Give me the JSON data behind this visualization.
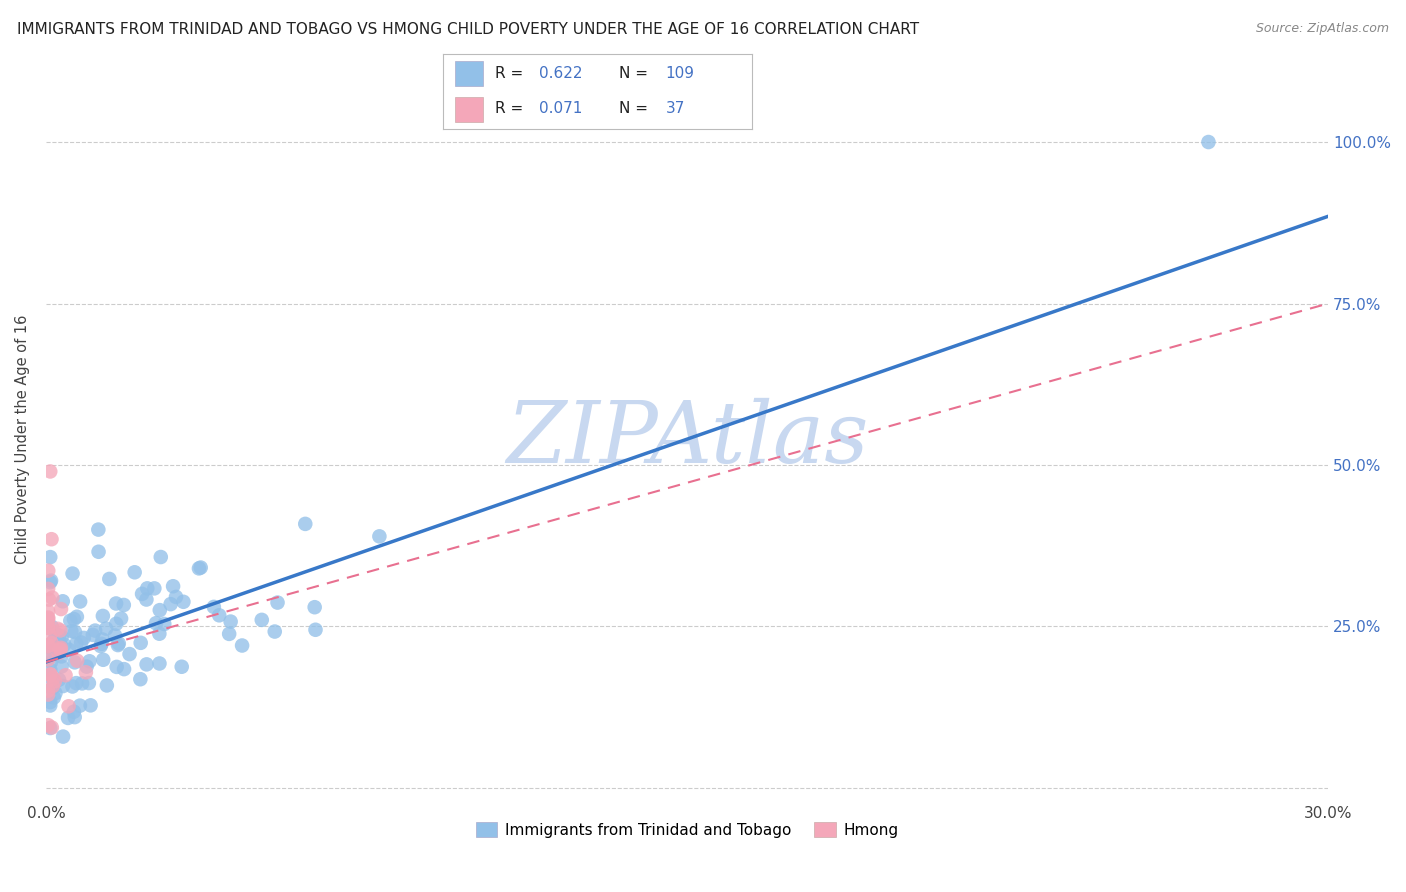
{
  "title": "IMMIGRANTS FROM TRINIDAD AND TOBAGO VS HMONG CHILD POVERTY UNDER THE AGE OF 16 CORRELATION CHART",
  "source": "Source: ZipAtlas.com",
  "ylabel": "Child Poverty Under the Age of 16",
  "xmin": 0.0,
  "xmax": 0.3,
  "ymin": -0.02,
  "ymax": 1.1,
  "yticks": [
    0.0,
    0.25,
    0.5,
    0.75,
    1.0
  ],
  "xticks": [
    0.0,
    0.05,
    0.1,
    0.15,
    0.2,
    0.25,
    0.3
  ],
  "xtick_labels": [
    "0.0%",
    "",
    "",
    "",
    "",
    "",
    "30.0%"
  ],
  "ytick_labels_right": [
    "",
    "25.0%",
    "50.0%",
    "75.0%",
    "100.0%"
  ],
  "blue_line_intercept": 0.195,
  "blue_line_slope": 2.3,
  "pink_line_intercept": 0.195,
  "pink_line_slope": 1.85,
  "series_blue_color": "#92c0e8",
  "series_pink_color": "#f4a7b9",
  "blue_line_color": "#3878c8",
  "pink_line_color": "#e87090",
  "legend_R_N_color": "#4472c4",
  "grid_color": "#cccccc",
  "background_color": "#ffffff",
  "watermark": "ZIPAtlas",
  "watermark_color": "#c8d8f0",
  "tick_label_color_right": "#4472c4",
  "title_fontsize": 11,
  "source_fontsize": 9,
  "series_blue_label": "Immigrants from Trinidad and Tobago",
  "series_pink_label": "Hmong",
  "blue_R": "0.622",
  "blue_N": "109",
  "pink_R": "0.071",
  "pink_N": "37"
}
